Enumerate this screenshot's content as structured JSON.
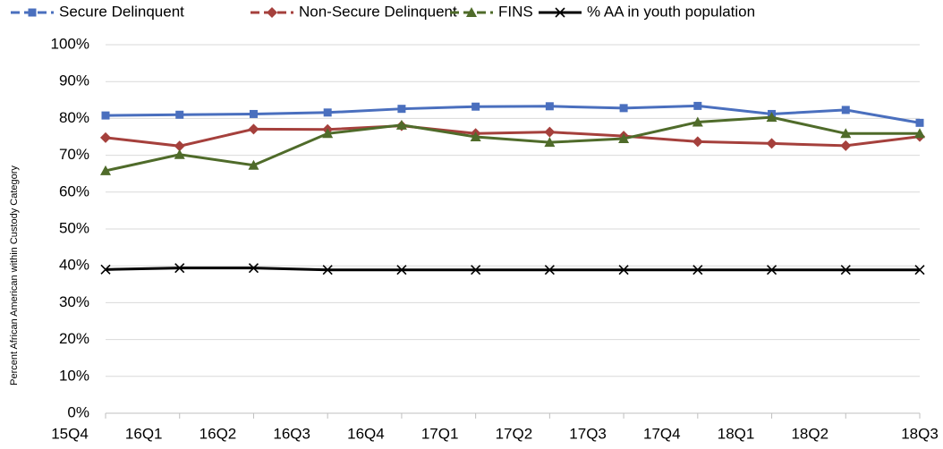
{
  "chart_data": {
    "type": "line",
    "y_label": "Percent African American within Custody Category",
    "categories": [
      "15Q4",
      "16Q1",
      "16Q2",
      "16Q3",
      "16Q4",
      "17Q1",
      "17Q2",
      "17Q3",
      "17Q4",
      "18Q1",
      "18Q2",
      "18Q3"
    ],
    "series": [
      {
        "name": "Secure Delinquent",
        "color": "#4a6fbe",
        "marker": "square",
        "values": [
          80.8,
          81,
          81.2,
          81.6,
          82.6,
          83.2,
          83.3,
          82.8,
          83.4,
          81.2,
          82.3,
          78.8
        ]
      },
      {
        "name": "Non-Secure Delinquent",
        "color": "#a5403c",
        "marker": "diamond",
        "values": [
          74.8,
          72.5,
          77.1,
          77,
          78,
          75.9,
          76.3,
          75.2,
          73.7,
          73.2,
          72.6,
          75.1
        ]
      },
      {
        "name": "FINS",
        "color": "#4f6b2a",
        "marker": "triangle",
        "values": [
          65.8,
          70.2,
          67.3,
          75.9,
          78.2,
          75,
          73.5,
          74.5,
          79,
          80.3,
          75.9,
          75.9
        ]
      },
      {
        "name": "% AA in youth population",
        "color": "#000000",
        "marker": "x",
        "values": [
          39,
          39.4,
          39.4,
          38.9,
          38.9,
          38.9,
          38.9,
          38.9,
          38.9,
          38.9,
          38.9,
          38.9
        ]
      }
    ],
    "ylim": [
      0,
      100
    ],
    "yticks": [
      {
        "value": 0,
        "label": "0%"
      },
      {
        "value": 10,
        "label": "10%"
      },
      {
        "value": 20,
        "label": "20%"
      },
      {
        "value": 30,
        "label": "30%"
      },
      {
        "value": 40,
        "label": "40%"
      },
      {
        "value": 50,
        "label": "50%"
      },
      {
        "value": 60,
        "label": "60%"
      },
      {
        "value": 70,
        "label": "70%"
      },
      {
        "value": 80,
        "label": "80%"
      },
      {
        "value": 90,
        "label": "90%"
      },
      {
        "value": 100,
        "label": "100%"
      }
    ],
    "grid": true,
    "legend": "top"
  }
}
